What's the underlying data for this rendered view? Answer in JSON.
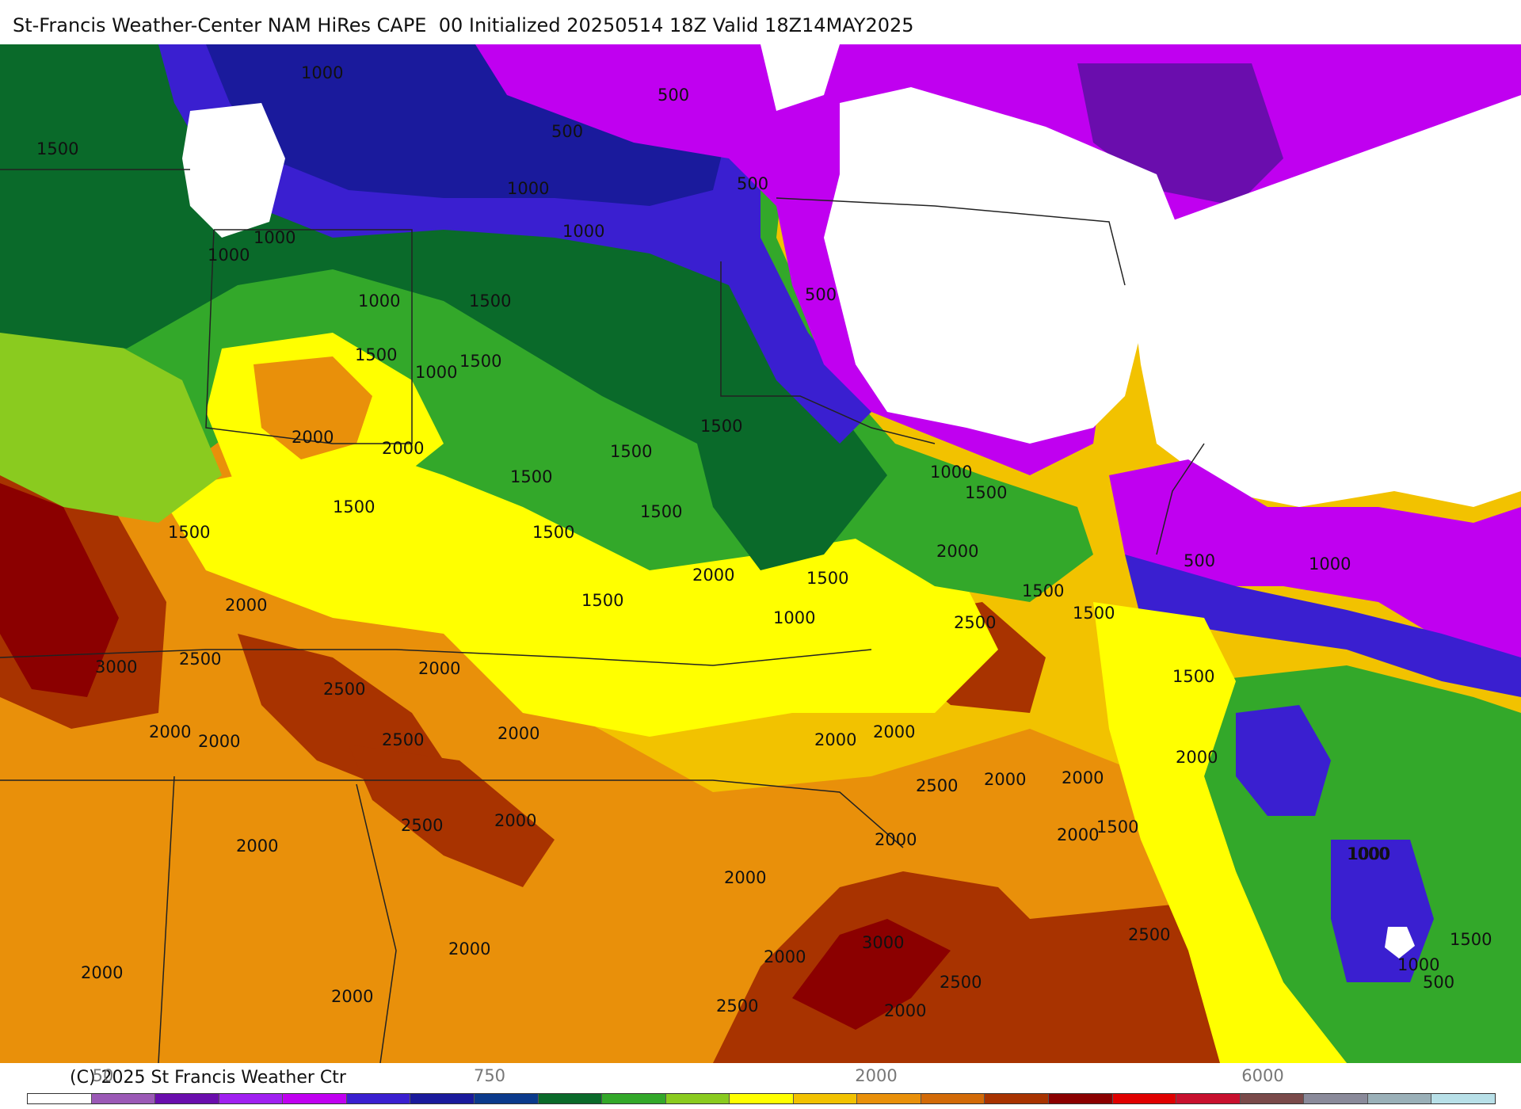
{
  "title": "St-Francis Weather-Center NAM HiRes CAPE  00 Initialized 20250514 18Z Valid 18Z14MAY2025",
  "credit": "(C) 2025 St Francis Weather Ctr",
  "colorbar": {
    "colors": [
      "#ffffff",
      "#9b59b6",
      "#6a0dad",
      "#a020f0",
      "#c000f0",
      "#3a1fd0",
      "#1a1a9c",
      "#0b3a8c",
      "#0a6a2a",
      "#33a82a",
      "#8acb1f",
      "#ffff00",
      "#f2c200",
      "#e9900a",
      "#d26a08",
      "#a83300",
      "#8b0000",
      "#e00000",
      "#c8102e",
      "#7a4a4a",
      "#8a8a9a",
      "#9ab0b8",
      "#b8e0e8"
    ],
    "ticks": [
      {
        "label": "50"
      },
      {
        "label": "750"
      },
      {
        "label": "2000"
      },
      {
        "label": "6000"
      }
    ]
  },
  "contour_labels": [
    "1000",
    "1500",
    "500",
    "500",
    "1000",
    "1000",
    "500",
    "1000",
    "1000",
    "1000",
    "1500",
    "1500",
    "1000",
    "1500",
    "2000",
    "2000",
    "1500",
    "1500",
    "1500",
    "1500",
    "1500",
    "1500",
    "1000",
    "1500",
    "500",
    "2000",
    "2000",
    "1500",
    "1500",
    "2500",
    "2000",
    "1500",
    "1500",
    "1000",
    "500",
    "1000",
    "1500",
    "1500",
    "3000",
    "2500",
    "2500",
    "2000",
    "2500",
    "2000",
    "2000",
    "2000",
    "2000",
    "2000",
    "2000",
    "2000",
    "2000",
    "2000",
    "1500",
    "1000",
    "2000",
    "2500",
    "2500",
    "2000",
    "2000",
    "2000",
    "2000",
    "2000",
    "2000",
    "3000",
    "2500",
    "2000",
    "2500",
    "2000",
    "2500",
    "1000",
    "1500",
    "500",
    "1000"
  ]
}
